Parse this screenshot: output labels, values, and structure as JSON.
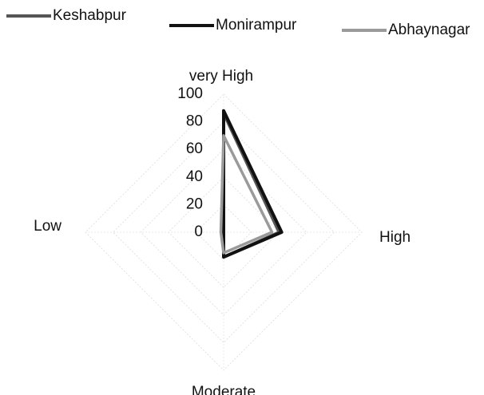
{
  "chart_data": {
    "type": "radar",
    "categories": [
      "very High",
      "High",
      "Moderate",
      "Low"
    ],
    "series": [
      {
        "name": "Keshabpur",
        "color": "#555555",
        "values": [
          86,
          40,
          18,
          0
        ]
      },
      {
        "name": "Monirampur",
        "color": "#111111",
        "values": [
          88,
          42,
          18,
          0
        ]
      },
      {
        "name": "Abhaynagar",
        "color": "#9a9a9a",
        "values": [
          70,
          35,
          15,
          2
        ]
      }
    ],
    "rlim": [
      0,
      100
    ],
    "rticks": [
      0,
      20,
      40,
      60,
      80,
      100
    ],
    "grid": true,
    "legend": "top"
  }
}
